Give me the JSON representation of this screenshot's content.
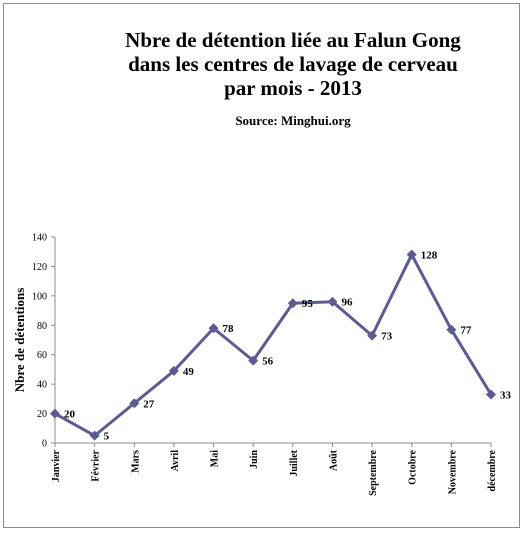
{
  "chart_data": {
    "type": "line",
    "title_lines": [
      "Nbre de détention liée au Falun Gong",
      "dans les centres de lavage de cerveau",
      "par mois - 2013"
    ],
    "subtitle": "Source: Minghui.org",
    "ylabel": "Nbre de détentions",
    "xlabel": "",
    "ylim": [
      0,
      140
    ],
    "yticks": [
      0,
      20,
      40,
      60,
      80,
      100,
      120,
      140
    ],
    "grid": false,
    "legend": "none",
    "categories": [
      "Janvier",
      "Février",
      "Mars",
      "Avril",
      "Mai",
      "Juin",
      "Juillet",
      "Août",
      "Septembre",
      "Octobre",
      "Novembre",
      "décembre"
    ],
    "series": [
      {
        "values": [
          20,
          5,
          27,
          49,
          78,
          56,
          95,
          96,
          73,
          128,
          77,
          33
        ],
        "color": "#5b5b92"
      }
    ]
  }
}
